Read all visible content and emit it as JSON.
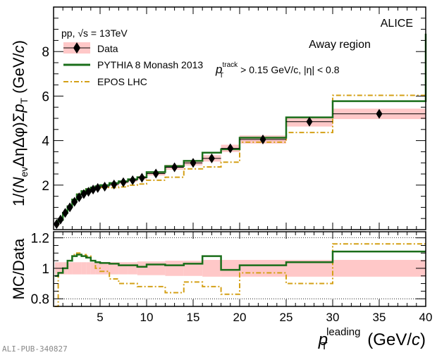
{
  "chart_data": [
    {
      "type": "line",
      "panel": "main",
      "ylabel": "1/(Nev ΔηΔφ)ΣpT (GeV/c)",
      "ylabel_parts": {
        "pre": "1/(",
        "N": "N",
        "ev": "ev",
        "mid": "ΔηΔφ)Σ",
        "p": "p",
        "T": "T",
        "post": " (GeV/",
        "c": "c",
        ")": ")"
      },
      "ylim": [
        0,
        10
      ],
      "xlim": [
        0,
        40
      ],
      "yticks": [
        "2",
        "4",
        "6",
        "8"
      ],
      "bin_edges": [
        0.15,
        0.5,
        1,
        1.5,
        2,
        2.5,
        3,
        3.5,
        4,
        4.5,
        5,
        6,
        7,
        8,
        9,
        10,
        12,
        14,
        16,
        18,
        20,
        25,
        30,
        40
      ],
      "data": [
        0.25,
        0.45,
        0.75,
        1.0,
        1.25,
        1.45,
        1.6,
        1.7,
        1.8,
        1.87,
        1.93,
        2.03,
        2.13,
        2.22,
        2.33,
        2.52,
        2.8,
        3.0,
        3.2,
        3.65,
        4.05,
        4.85,
        5.2
      ],
      "sys_rel": [
        0.03,
        0.03,
        0.03,
        0.03,
        0.03,
        0.03,
        0.03,
        0.03,
        0.03,
        0.03,
        0.03,
        0.03,
        0.03,
        0.03,
        0.035,
        0.035,
        0.04,
        0.04,
        0.045,
        0.045,
        0.045,
        0.045,
        0.045
      ],
      "legend": {
        "data": "Data",
        "pythia": "PYTHIA 8 Monash 2013",
        "epos": "EPOS LHC"
      },
      "text": {
        "system": "pp, √s = 13TeV",
        "experiment": "ALICE",
        "region": "Away region",
        "cut_p": "p",
        "cut_T": "T",
        "cut_sup": "track",
        "cut_rest": " > 0.15 GeV/c, |η| < 0.8"
      }
    },
    {
      "type": "line",
      "panel": "ratio",
      "ylabel": "MC/Data",
      "ylim": [
        0.75,
        1.24
      ],
      "yticks": [
        "0.8",
        "1",
        "1.2"
      ],
      "yvals": [
        0.8,
        1,
        1.2
      ],
      "pythia_ratio": [
        0.95,
        0.97,
        1.0,
        1.05,
        1.08,
        1.09,
        1.08,
        1.07,
        1.05,
        1.04,
        1.035,
        1.03,
        1.02,
        1.02,
        1.01,
        1.025,
        1.02,
        1.03,
        1.08,
        0.99,
        1.02,
        1.04,
        1.11
      ],
      "epos_ratio": [
        0.75,
        0.97,
        1.0,
        1.05,
        1.09,
        1.1,
        1.09,
        1.08,
        1.05,
        1.0,
        0.98,
        0.93,
        0.9,
        0.9,
        0.88,
        0.88,
        0.84,
        0.91,
        0.88,
        0.83,
        0.97,
        0.9,
        1.16
      ]
    }
  ],
  "xaxis": {
    "ticks": [
      "5",
      "10",
      "15",
      "20",
      "25",
      "30",
      "35",
      "40"
    ],
    "tickvals": [
      5,
      10,
      15,
      20,
      25,
      30,
      35,
      40
    ],
    "label_p": "p",
    "label_sub": "T",
    "label_sup": "leading",
    "label_rest": " (GeV/",
    "label_c": "c",
    "label_close": ")"
  },
  "colors": {
    "pythia": "#1a6e1a",
    "epos": "#d4a017",
    "band": "#ffc8c8"
  },
  "footer": "ALI-PUB-340827"
}
